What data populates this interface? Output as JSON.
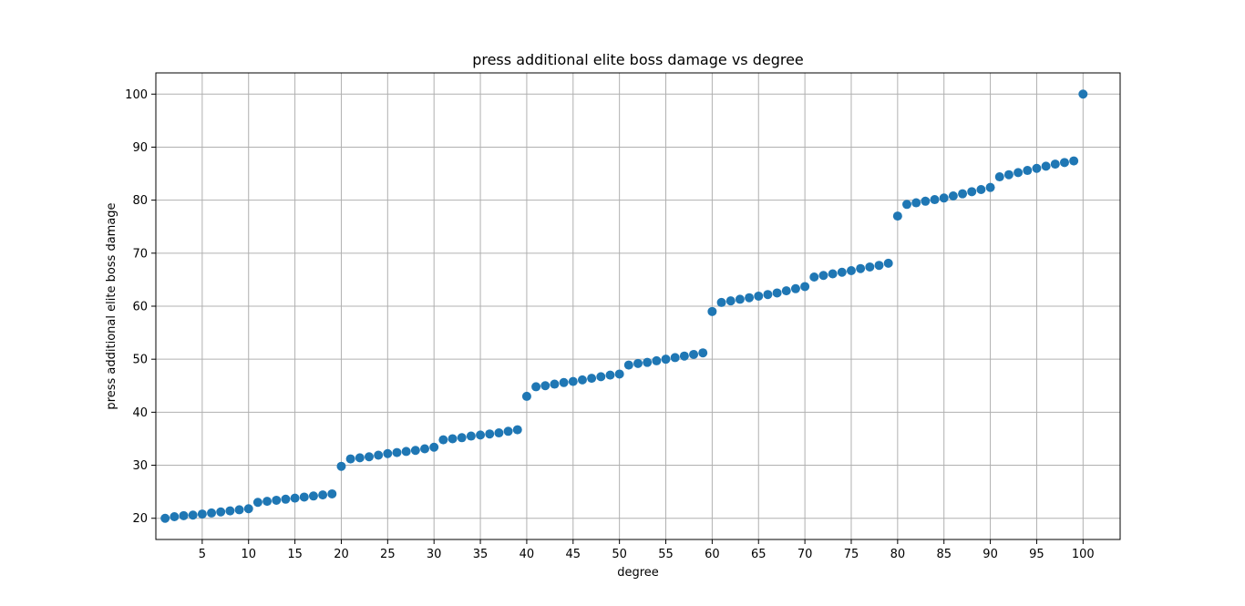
{
  "chart_data": {
    "type": "scatter",
    "title": "press additional elite boss damage vs degree",
    "xlabel": "degree",
    "ylabel": "press additional elite boss damage",
    "xlim": [
      0,
      104
    ],
    "ylim": [
      16,
      104
    ],
    "xticks": [
      5,
      10,
      15,
      20,
      25,
      30,
      35,
      40,
      45,
      50,
      55,
      60,
      65,
      70,
      75,
      80,
      85,
      90,
      95,
      100
    ],
    "yticks": [
      20,
      30,
      40,
      50,
      60,
      70,
      80,
      90,
      100
    ],
    "grid": true,
    "marker_color": "#1f77b4",
    "series": [
      {
        "x": [
          1,
          2,
          3,
          4,
          5,
          6,
          7,
          8,
          9,
          10,
          11,
          12,
          13,
          14,
          15,
          16,
          17,
          18,
          19,
          20,
          21,
          22,
          23,
          24,
          25,
          26,
          27,
          28,
          29,
          30,
          31,
          32,
          33,
          34,
          35,
          36,
          37,
          38,
          39,
          40,
          41,
          42,
          43,
          44,
          45,
          46,
          47,
          48,
          49,
          50,
          51,
          52,
          53,
          54,
          55,
          56,
          57,
          58,
          59,
          60,
          61,
          62,
          63,
          64,
          65,
          66,
          67,
          68,
          69,
          70,
          71,
          72,
          73,
          74,
          75,
          76,
          77,
          78,
          79,
          80,
          81,
          82,
          83,
          84,
          85,
          86,
          87,
          88,
          89,
          90,
          91,
          92,
          93,
          94,
          95,
          96,
          97,
          98,
          99,
          100
        ],
        "y": [
          20,
          20.3,
          20.5,
          20.6,
          20.8,
          21.0,
          21.2,
          21.4,
          21.6,
          21.8,
          23.0,
          23.2,
          23.4,
          23.6,
          23.8,
          24.0,
          24.2,
          24.4,
          24.6,
          29.8,
          31.2,
          31.4,
          31.6,
          31.9,
          32.2,
          32.4,
          32.6,
          32.8,
          33.1,
          33.4,
          34.8,
          35.0,
          35.2,
          35.5,
          35.7,
          35.9,
          36.1,
          36.4,
          36.7,
          43.0,
          44.8,
          45.0,
          45.3,
          45.6,
          45.8,
          46.1,
          46.4,
          46.7,
          47.0,
          47.2,
          48.9,
          49.2,
          49.4,
          49.7,
          50.0,
          50.3,
          50.6,
          50.9,
          51.2,
          59.0,
          60.7,
          61.0,
          61.3,
          61.6,
          61.9,
          62.2,
          62.5,
          62.9,
          63.3,
          63.7,
          65.5,
          65.8,
          66.1,
          66.4,
          66.7,
          67.1,
          67.4,
          67.7,
          68.1,
          77.0,
          79.2,
          79.5,
          79.8,
          80.1,
          80.4,
          80.8,
          81.2,
          81.6,
          82.0,
          82.4,
          84.4,
          84.8,
          85.2,
          85.6,
          86.0,
          86.4,
          86.8,
          87.1,
          87.4,
          100
        ]
      }
    ]
  }
}
